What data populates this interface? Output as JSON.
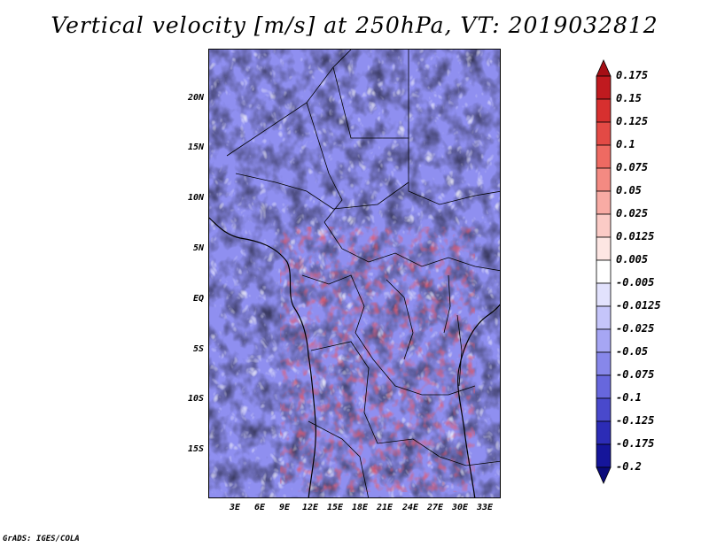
{
  "title": "Vertical velocity [m/s] at 250hPa, VT: 2019032812",
  "footer": "GrADS: IGES/COLA",
  "map": {
    "lat_ticks": [
      "20N",
      "15N",
      "10N",
      "5N",
      "EQ",
      "5S",
      "10S",
      "15S"
    ],
    "lon_ticks": [
      "3E",
      "6E",
      "9E",
      "12E",
      "15E",
      "18E",
      "21E",
      "24E",
      "27E",
      "30E",
      "33E"
    ]
  },
  "colorbar": {
    "labels": [
      "0.175",
      "0.15",
      "0.125",
      "0.1",
      "0.075",
      "0.05",
      "0.025",
      "0.0125",
      "0.005",
      "-0.005",
      "-0.0125",
      "-0.025",
      "-0.05",
      "-0.075",
      "-0.1",
      "-0.125",
      "-0.175",
      "-0.2"
    ],
    "colors": [
      "#a50f15",
      "#c01a1f",
      "#d7302f",
      "#e34a45",
      "#ee6a62",
      "#f48a82",
      "#f8aba4",
      "#fbcbc6",
      "#fde6e3",
      "#ffffff",
      "#e2e2fd",
      "#c5c5fa",
      "#a6a6f4",
      "#8787ea",
      "#6767dd",
      "#4949cc",
      "#2c2cb6",
      "#15159a",
      "#0a0a7a"
    ]
  }
}
